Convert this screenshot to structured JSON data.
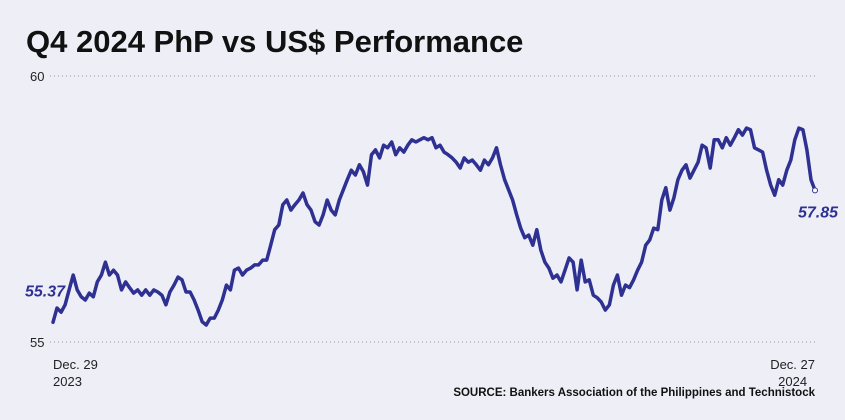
{
  "chart_data": {
    "type": "line",
    "title": "Q4 2024 PhP vs US$ Performance",
    "source": "SOURCE: Bankers Association of the Philippines and Technistock",
    "x_labels": [
      "Dec. 29\n2023",
      "Dec. 27\n2024"
    ],
    "annotations": [
      "55.37",
      "57.85"
    ],
    "ylim": [
      55,
      60
    ],
    "yticks": [
      55,
      60
    ],
    "grid": true,
    "series": [
      {
        "color": "#2e3192",
        "values": [
          55.37,
          55.64,
          55.56,
          55.7,
          55.98,
          56.26,
          55.98,
          55.85,
          55.79,
          55.92,
          55.85,
          56.13,
          56.26,
          56.5,
          56.26,
          56.35,
          56.26,
          55.98,
          56.13,
          56.02,
          55.92,
          55.98,
          55.88,
          55.98,
          55.88,
          55.98,
          55.94,
          55.88,
          55.7,
          55.94,
          56.07,
          56.22,
          56.17,
          55.94,
          55.94,
          55.79,
          55.6,
          55.38,
          55.32,
          55.45,
          55.45,
          55.6,
          55.79,
          56.07,
          55.98,
          56.35,
          56.39,
          56.26,
          56.35,
          56.39,
          56.45,
          56.45,
          56.54,
          56.54,
          56.82,
          57.11,
          57.2,
          57.58,
          57.67,
          57.48,
          57.58,
          57.67,
          57.8,
          57.58,
          57.48,
          57.26,
          57.2,
          57.39,
          57.67,
          57.48,
          57.39,
          57.67,
          57.86,
          58.05,
          58.23,
          58.14,
          58.33,
          58.2,
          57.95,
          58.52,
          58.61,
          58.46,
          58.7,
          58.65,
          58.76,
          58.52,
          58.65,
          58.57,
          58.7,
          58.8,
          58.76,
          58.8,
          58.84,
          58.8,
          58.84,
          58.65,
          58.7,
          58.57,
          58.52,
          58.46,
          58.38,
          58.27,
          58.46,
          58.38,
          58.42,
          58.33,
          58.23,
          58.42,
          58.33,
          58.46,
          58.65,
          58.33,
          58.05,
          57.86,
          57.67,
          57.39,
          57.14,
          56.96,
          57.01,
          56.82,
          57.11,
          56.73,
          56.5,
          56.39,
          56.2,
          56.26,
          56.13,
          56.35,
          56.58,
          56.5,
          55.98,
          56.54,
          56.13,
          56.17,
          55.88,
          55.83,
          55.75,
          55.6,
          55.7,
          56.07,
          56.26,
          55.88,
          56.07,
          56.02,
          56.17,
          56.35,
          56.5,
          56.82,
          56.92,
          57.14,
          57.11,
          57.67,
          57.9,
          57.48,
          57.71,
          58.05,
          58.23,
          58.33,
          58.08,
          58.23,
          58.38,
          58.7,
          58.65,
          58.27,
          58.8,
          58.8,
          58.65,
          58.84,
          58.7,
          58.84,
          58.99,
          58.89,
          59.02,
          58.99,
          58.65,
          58.61,
          58.57,
          58.23,
          57.95,
          57.76,
          58.05,
          57.95,
          58.23,
          58.42,
          58.8,
          59.02,
          58.99,
          58.61,
          58.05,
          57.85
        ]
      }
    ]
  }
}
